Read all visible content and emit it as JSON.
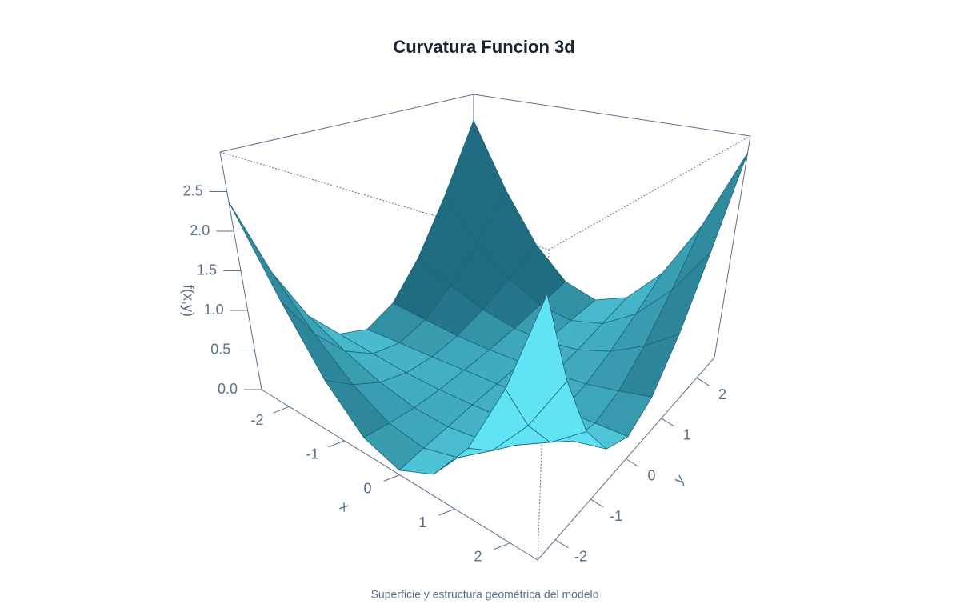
{
  "chart_data": {
    "type": "surface",
    "title": "Curvatura Funcion 3d",
    "caption": "Superficie y estructura geométrica del modelo",
    "x_label": "x",
    "y_label": "y",
    "z_label": "f(x,y)",
    "x": [
      -2.5,
      -1.875,
      -1.25,
      -0.625,
      0,
      0.625,
      1.25,
      1.875,
      2.5
    ],
    "y": [
      -2.5,
      -1.875,
      -1.25,
      -0.625,
      0,
      0.625,
      1.25,
      1.875,
      2.5
    ],
    "z": [
      [
        2.37,
        1.34,
        0.61,
        0.18,
        0.05,
        0.23,
        0.71,
        1.49,
        2.57
      ],
      [
        1.34,
        0.77,
        0.37,
        0.14,
        0.08,
        0.19,
        0.47,
        0.92,
        1.54
      ],
      [
        0.61,
        0.37,
        0.2,
        0.11,
        0.1,
        0.16,
        0.3,
        0.52,
        0.81
      ],
      [
        0.18,
        0.14,
        0.11,
        0.11,
        0.13,
        0.16,
        0.21,
        0.29,
        0.38
      ],
      [
        0.05,
        0.08,
        0.1,
        0.13,
        0.15,
        0.18,
        0.2,
        0.23,
        0.25
      ],
      [
        0.23,
        0.19,
        0.16,
        0.16,
        0.18,
        0.21,
        0.26,
        0.34,
        0.43
      ],
      [
        0.71,
        0.47,
        0.3,
        0.21,
        0.2,
        0.26,
        0.4,
        0.62,
        0.91
      ],
      [
        1.49,
        0.92,
        0.52,
        0.29,
        0.23,
        0.34,
        0.62,
        1.07,
        1.69
      ],
      [
        2.57,
        1.54,
        0.81,
        0.38,
        0.25,
        0.43,
        0.91,
        1.69,
        2.77
      ]
    ],
    "xlim": [
      -2.5,
      2.5
    ],
    "ylim": [
      -2.5,
      2.5
    ],
    "zlim": [
      0,
      3
    ],
    "xticks": [
      -2,
      -1,
      0,
      1,
      2
    ],
    "yticks": [
      -2,
      -1,
      0,
      1,
      2
    ],
    "zticks": [
      {
        "value": 0,
        "label": "0.0"
      },
      {
        "value": 0.5,
        "label": "0.5"
      },
      {
        "value": 1,
        "label": "1.0"
      },
      {
        "value": 1.5,
        "label": "1.5"
      },
      {
        "value": 2,
        "label": "2.0"
      },
      {
        "value": 2.5,
        "label": "2.5"
      }
    ],
    "color": "#1f6b80",
    "highlight_color": "#5fe3f5",
    "edge_color": "#1d6478"
  }
}
